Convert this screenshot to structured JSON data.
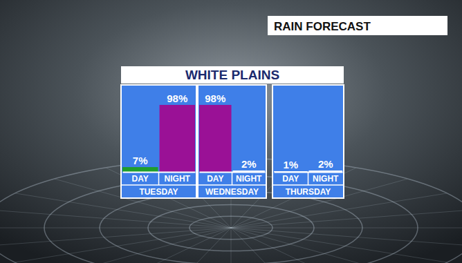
{
  "chart_data": {
    "type": "bar",
    "title": "WHITE PLAINS",
    "subtitle": "RAIN FORECAST",
    "groups": [
      "TUESDAY",
      "WEDNESDAY",
      "THURSDAY"
    ],
    "categories": [
      "DAY",
      "NIGHT",
      "DAY",
      "NIGHT",
      "DAY",
      "NIGHT"
    ],
    "values": [
      7,
      98,
      98,
      2,
      1,
      2
    ],
    "value_labels": [
      "7%",
      "98%",
      "98%",
      "2%",
      "1%",
      "2%"
    ],
    "colors": [
      "#1f9e2c",
      "#9a1196",
      "#9a1196",
      "#ffffff",
      "#ffffff",
      "#ffffff"
    ],
    "ylim": [
      0,
      100
    ],
    "data_labels": true,
    "tick_labels": "x"
  }
}
